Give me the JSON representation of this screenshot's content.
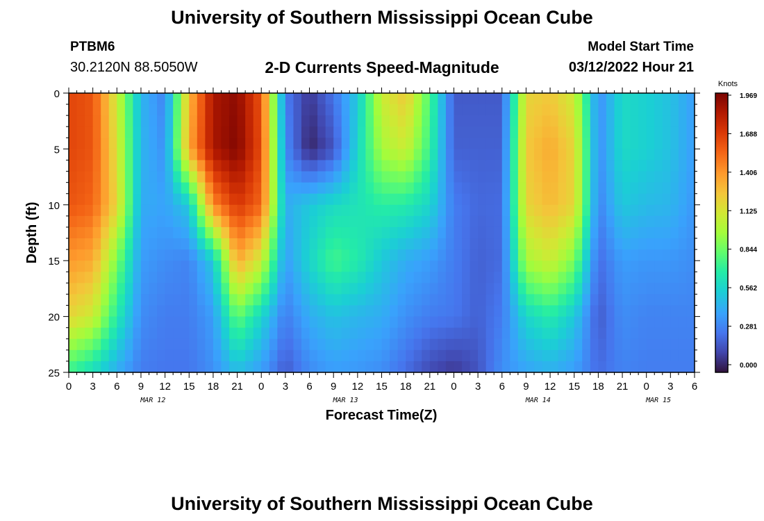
{
  "header": {
    "title_top": "University of Southern Mississippi Ocean Cube",
    "title_bottom": "University of Southern Mississippi Ocean Cube",
    "station_id": "PTBM6",
    "coords": "30.2120N  88.5050W",
    "chart_title": "2-D Currents Speed-Magnitude",
    "model_start_label": "Model Start Time",
    "model_start_value": "03/12/2022 Hour 21"
  },
  "chart_data": {
    "type": "heatmap",
    "title": "2-D Currents Speed-Magnitude",
    "xlabel": "Forecast Time(Z)",
    "ylabel": "Depth (ft)",
    "x_start_hour": 0,
    "x_end_hour": 78,
    "x_ticks": [
      "0",
      "3",
      "6",
      "9",
      "12",
      "15",
      "18",
      "21",
      "0",
      "3",
      "6",
      "9",
      "12",
      "15",
      "18",
      "21",
      "0",
      "3",
      "6",
      "9",
      "12",
      "15",
      "18",
      "21",
      "0",
      "3",
      "6"
    ],
    "date_labels": [
      {
        "text": "MAR 12",
        "tick_index": 3.5
      },
      {
        "text": "MAR 13",
        "tick_index": 11.5
      },
      {
        "text": "MAR 14",
        "tick_index": 19.5
      },
      {
        "text": "MAR 15",
        "tick_index": 24.5
      }
    ],
    "y_range": [
      0,
      25
    ],
    "y_ticks": [
      "0",
      "5",
      "10",
      "15",
      "20",
      "25"
    ],
    "colorbar": {
      "units": "Knots",
      "ticks": [
        "1.969",
        "1.688",
        "1.406",
        "1.125",
        "0.844",
        "0.562",
        "0.281",
        "0.000"
      ],
      "min": 0.0,
      "max": 1.969
    },
    "depths_ft": [
      0,
      5,
      10,
      15,
      20,
      25
    ],
    "times_h": [
      0,
      3,
      6,
      9,
      12,
      15,
      18,
      21,
      24,
      27,
      30,
      33,
      36,
      39,
      42,
      45,
      48,
      51,
      54,
      57,
      60,
      63,
      66,
      69,
      72,
      75,
      78
    ],
    "speed_knots": [
      [
        1.65,
        1.6,
        1.1,
        0.48,
        0.32,
        1.3,
        1.85,
        1.92,
        1.6,
        0.3,
        0.1,
        0.28,
        0.55,
        1.1,
        1.25,
        0.8,
        0.2,
        0.2,
        0.2,
        1.2,
        1.25,
        1.1,
        0.35,
        0.62,
        0.58,
        0.52,
        0.4
      ],
      [
        1.65,
        1.6,
        1.15,
        0.48,
        0.36,
        1.35,
        1.85,
        1.95,
        1.62,
        0.35,
        0.05,
        0.18,
        0.6,
        1.0,
        1.1,
        0.75,
        0.22,
        0.22,
        0.22,
        1.25,
        1.35,
        1.2,
        0.35,
        0.62,
        0.58,
        0.52,
        0.4
      ],
      [
        1.6,
        1.55,
        1.2,
        0.45,
        0.42,
        0.55,
        1.45,
        1.7,
        1.55,
        0.45,
        0.55,
        0.62,
        0.66,
        0.72,
        0.7,
        0.6,
        0.3,
        0.24,
        0.25,
        1.2,
        1.3,
        1.2,
        0.32,
        0.55,
        0.5,
        0.48,
        0.38
      ],
      [
        1.4,
        1.35,
        0.9,
        0.4,
        0.35,
        0.32,
        0.55,
        1.35,
        1.1,
        0.4,
        0.6,
        0.78,
        0.7,
        0.55,
        0.45,
        0.4,
        0.3,
        0.22,
        0.25,
        1.0,
        1.1,
        0.9,
        0.25,
        0.4,
        0.38,
        0.38,
        0.35
      ],
      [
        1.2,
        1.1,
        0.7,
        0.35,
        0.3,
        0.3,
        0.4,
        0.85,
        0.6,
        0.3,
        0.45,
        0.52,
        0.48,
        0.45,
        0.36,
        0.3,
        0.28,
        0.22,
        0.3,
        0.6,
        0.7,
        0.55,
        0.2,
        0.35,
        0.32,
        0.32,
        0.32
      ],
      [
        0.75,
        0.62,
        0.45,
        0.3,
        0.28,
        0.28,
        0.36,
        0.5,
        0.4,
        0.2,
        0.34,
        0.4,
        0.38,
        0.35,
        0.25,
        0.15,
        0.1,
        0.18,
        0.36,
        0.42,
        0.46,
        0.4,
        0.25,
        0.32,
        0.3,
        0.3,
        0.3
      ]
    ]
  }
}
